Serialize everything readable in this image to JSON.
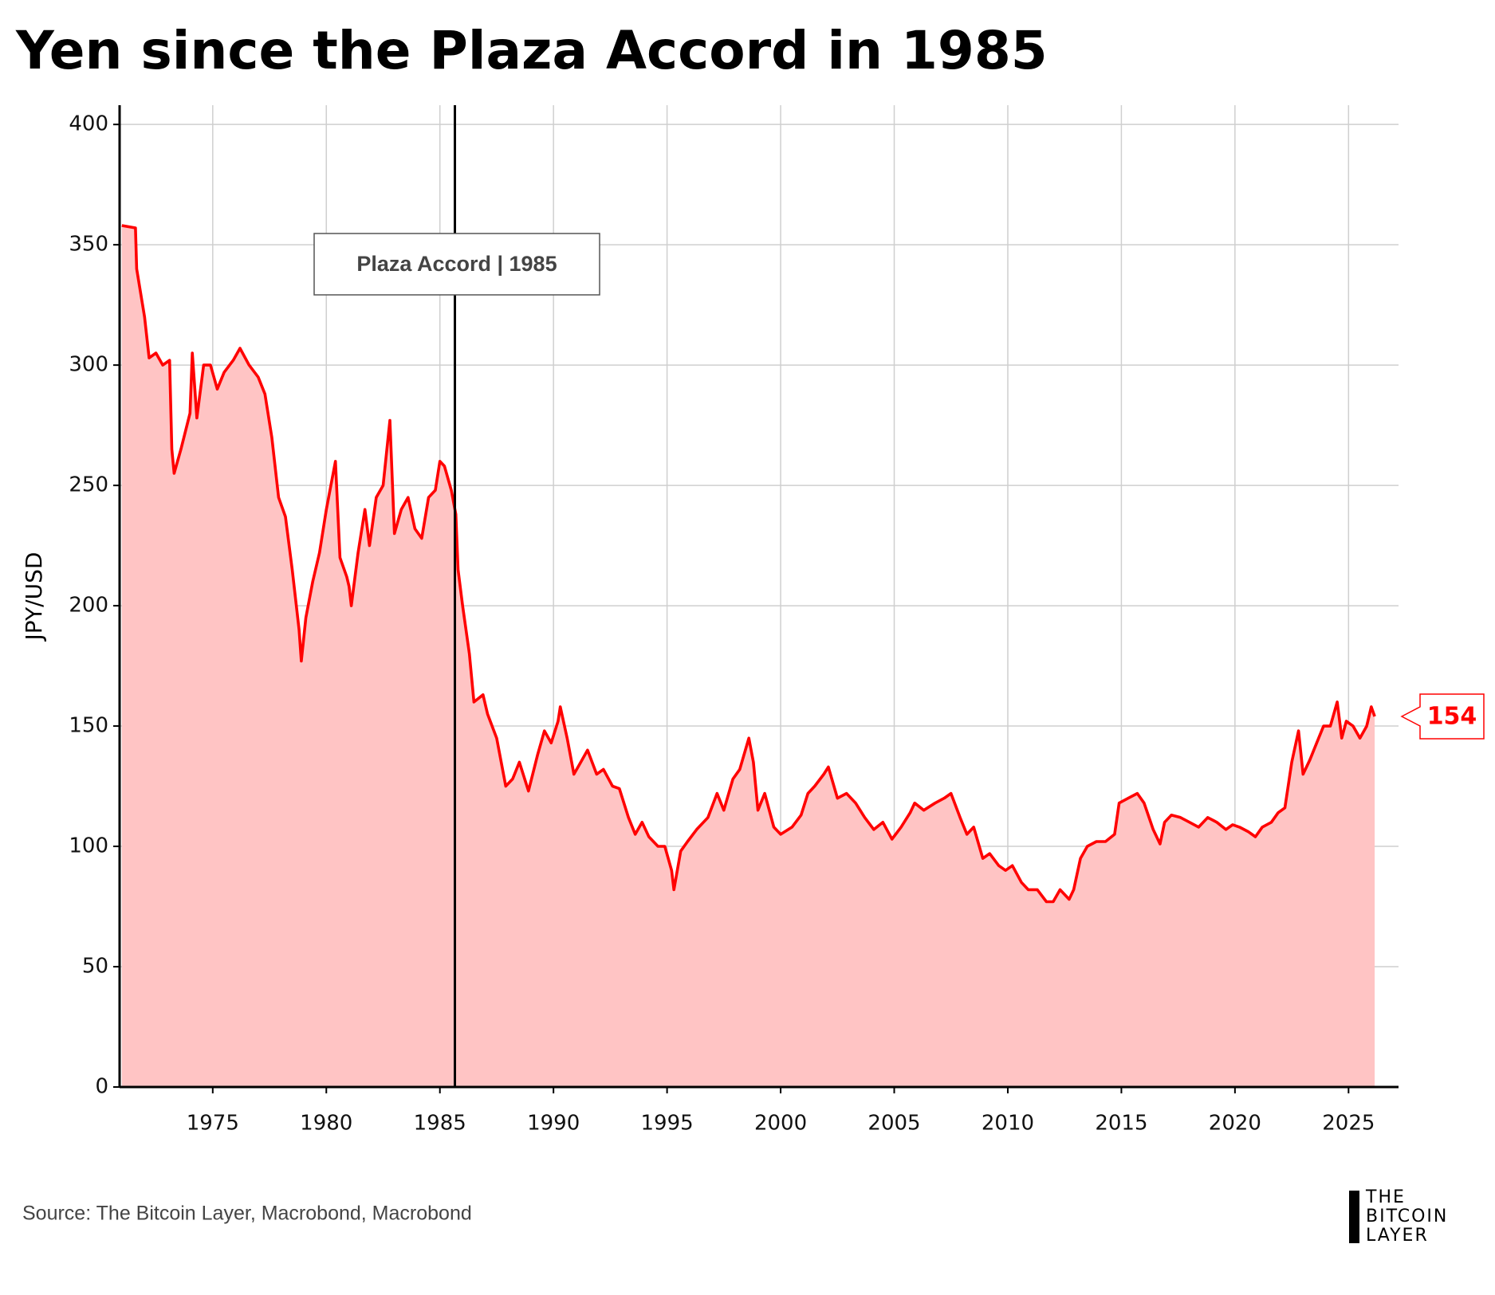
{
  "chart_data": {
    "type": "area",
    "title": "Yen since the Plaza Accord in 1985",
    "y_label": "JPY/USD",
    "source": "Source: The Bitcoin Layer, Macrobond, Macrobond",
    "logo": [
      "THE",
      "BITCOIN",
      "LAYER"
    ],
    "annotation": {
      "x": 1985.66,
      "label": "Plaza Accord | 1985"
    },
    "xlim": [
      1970.9,
      2027.2
    ],
    "xticks": [
      1975,
      1980,
      1985,
      1990,
      1995,
      2000,
      2005,
      2010,
      2015,
      2020,
      2025
    ],
    "ylim": [
      0,
      408
    ],
    "yticks": [
      0,
      50,
      100,
      150,
      200,
      250,
      300,
      350,
      400
    ],
    "grid": true,
    "x": [
      1971.0,
      1971.6,
      1971.65,
      1972.0,
      1972.2,
      1972.5,
      1972.8,
      1973.1,
      1973.2,
      1973.3,
      1973.6,
      1974.0,
      1974.1,
      1974.3,
      1974.6,
      1974.9,
      1975.2,
      1975.5,
      1975.9,
      1976.2,
      1976.6,
      1977.0,
      1977.3,
      1977.6,
      1977.9,
      1978.2,
      1978.5,
      1978.8,
      1978.9,
      1979.1,
      1979.4,
      1979.7,
      1980.0,
      1980.2,
      1980.4,
      1980.6,
      1980.9,
      1981.0,
      1981.1,
      1981.4,
      1981.7,
      1981.9,
      1982.2,
      1982.5,
      1982.8,
      1983.0,
      1983.3,
      1983.6,
      1983.9,
      1984.2,
      1984.5,
      1984.8,
      1985.0,
      1985.2,
      1985.5,
      1985.7,
      1985.8,
      1986.0,
      1986.3,
      1986.5,
      1986.9,
      1987.1,
      1987.5,
      1987.9,
      1988.2,
      1988.5,
      1988.9,
      1989.3,
      1989.6,
      1989.9,
      1990.2,
      1990.3,
      1990.6,
      1990.9,
      1991.2,
      1991.5,
      1991.9,
      1992.2,
      1992.6,
      1992.9,
      1993.3,
      1993.6,
      1993.9,
      1994.2,
      1994.6,
      1994.9,
      1995.2,
      1995.3,
      1995.6,
      1995.9,
      1996.3,
      1996.8,
      1997.2,
      1997.5,
      1997.9,
      1998.2,
      1998.6,
      1998.8,
      1999.0,
      1999.3,
      1999.7,
      2000.0,
      2000.5,
      2000.9,
      2001.2,
      2001.5,
      2001.9,
      2002.1,
      2002.5,
      2002.9,
      2003.3,
      2003.7,
      2004.1,
      2004.5,
      2004.9,
      2005.3,
      2005.7,
      2005.9,
      2006.3,
      2006.8,
      2007.2,
      2007.5,
      2007.9,
      2008.2,
      2008.5,
      2008.9,
      2009.2,
      2009.6,
      2009.9,
      2010.2,
      2010.6,
      2010.9,
      2011.3,
      2011.7,
      2012.0,
      2012.3,
      2012.7,
      2012.9,
      2013.2,
      2013.5,
      2013.9,
      2014.3,
      2014.7,
      2014.9,
      2015.3,
      2015.7,
      2016.0,
      2016.4,
      2016.7,
      2016.9,
      2017.2,
      2017.6,
      2018.0,
      2018.4,
      2018.8,
      2019.2,
      2019.6,
      2019.9,
      2020.2,
      2020.6,
      2020.9,
      2021.2,
      2021.6,
      2021.9,
      2022.2,
      2022.5,
      2022.8,
      2023.0,
      2023.3,
      2023.6,
      2023.9,
      2024.2,
      2024.5,
      2024.7,
      2024.9,
      2025.2,
      2025.5,
      2025.8,
      2026.0,
      2026.15
    ],
    "series": [
      {
        "name": "JPY/USD",
        "color": "#ff0000",
        "fill": "#ffc4c4",
        "values": [
          358,
          357,
          340,
          320,
          303,
          305,
          300,
          302,
          265,
          255,
          265,
          280,
          305,
          278,
          300,
          300,
          290,
          297,
          302,
          307,
          300,
          295,
          288,
          270,
          245,
          237,
          215,
          190,
          177,
          195,
          210,
          222,
          240,
          250,
          260,
          220,
          212,
          208,
          200,
          222,
          240,
          225,
          245,
          250,
          277,
          230,
          240,
          245,
          232,
          228,
          245,
          248,
          260,
          258,
          248,
          238,
          215,
          200,
          180,
          160,
          163,
          155,
          145,
          125,
          128,
          135,
          123,
          138,
          148,
          143,
          152,
          158,
          145,
          130,
          135,
          140,
          130,
          132,
          125,
          124,
          112,
          105,
          110,
          104,
          100,
          100,
          90,
          82,
          98,
          102,
          107,
          112,
          122,
          115,
          128,
          132,
          145,
          135,
          115,
          122,
          108,
          105,
          108,
          113,
          122,
          125,
          130,
          133,
          120,
          122,
          118,
          112,
          107,
          110,
          103,
          108,
          114,
          118,
          115,
          118,
          120,
          122,
          112,
          105,
          108,
          95,
          97,
          92,
          90,
          92,
          85,
          82,
          82,
          77,
          77,
          82,
          78,
          82,
          95,
          100,
          102,
          102,
          105,
          118,
          120,
          122,
          118,
          107,
          101,
          110,
          113,
          112,
          110,
          108,
          112,
          110,
          107,
          109,
          108,
          106,
          104,
          108,
          110,
          114,
          116,
          135,
          148,
          130,
          136,
          143,
          150,
          150,
          160,
          145,
          152,
          150,
          145,
          150,
          158,
          154
        ]
      }
    ]
  }
}
